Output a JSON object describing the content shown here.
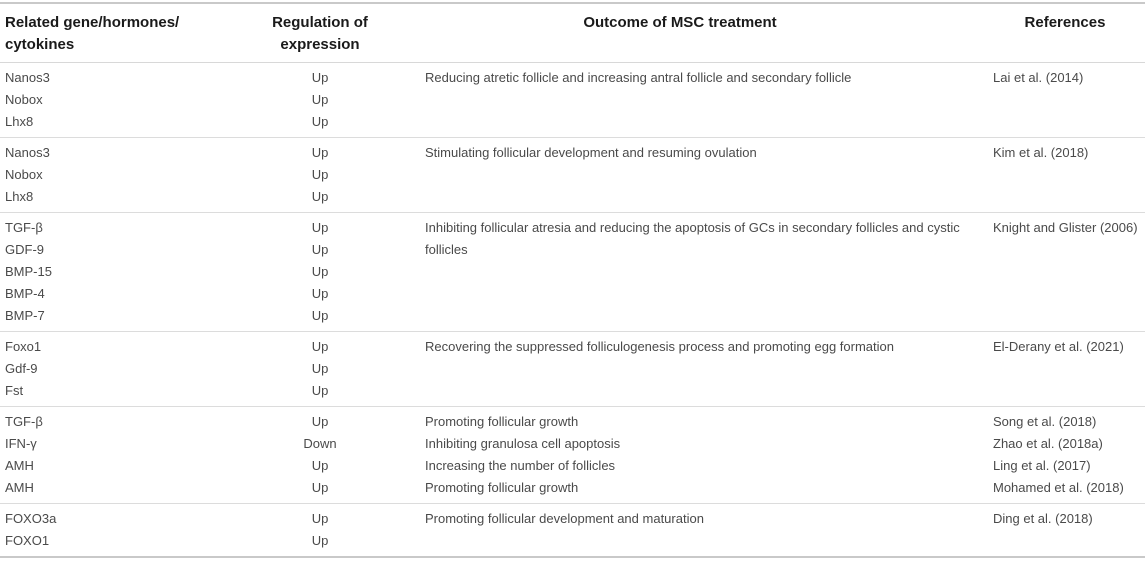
{
  "table": {
    "headers": [
      "Related gene/hormones/\ncytokines",
      "Regulation of\nexpression",
      "Outcome of MSC treatment",
      "References"
    ],
    "rows": [
      {
        "genes": [
          "Nanos3",
          "Nobox",
          "Lhx8"
        ],
        "regulation": [
          "Up",
          "Up",
          "Up"
        ],
        "outcomes": [
          "Reducing atretic follicle and increasing antral follicle and secondary follicle"
        ],
        "references": [
          "Lai et al. (2014)"
        ]
      },
      {
        "genes": [
          "Nanos3",
          "Nobox",
          "Lhx8"
        ],
        "regulation": [
          "Up",
          "Up",
          "Up"
        ],
        "outcomes": [
          "Stimulating follicular development and resuming ovulation"
        ],
        "references": [
          "Kim et al. (2018)"
        ]
      },
      {
        "genes": [
          "TGF-β",
          "GDF-9",
          "BMP-15",
          "BMP-4",
          "BMP-7"
        ],
        "regulation": [
          "Up",
          "Up",
          "Up",
          "Up",
          "Up"
        ],
        "outcomes": [
          "Inhibiting follicular atresia and reducing the apoptosis of GCs in secondary follicles and cystic follicles"
        ],
        "references": [
          "Knight and Glister (2006)"
        ]
      },
      {
        "genes": [
          "Foxo1",
          "Gdf-9",
          "Fst"
        ],
        "regulation": [
          "Up",
          "Up",
          "Up"
        ],
        "outcomes": [
          "Recovering the suppressed folliculogenesis process and promoting egg formation"
        ],
        "references": [
          "El-Derany et al. (2021)"
        ]
      },
      {
        "genes": [
          "TGF-β",
          "IFN-γ",
          "AMH",
          "AMH"
        ],
        "regulation": [
          "Up",
          "Down",
          "Up",
          "Up"
        ],
        "outcomes": [
          "Promoting follicular growth",
          "Inhibiting granulosa cell apoptosis",
          "Increasing the number of follicles",
          "Promoting follicular growth"
        ],
        "references": [
          "Song et al. (2018)",
          "Zhao et al. (2018a)",
          "Ling et al. (2017)",
          "Mohamed et al. (2018)"
        ]
      },
      {
        "genes": [
          "FOXO3a",
          "FOXO1"
        ],
        "regulation": [
          "Up",
          "Up"
        ],
        "outcomes": [
          "Promoting follicular development and maturation"
        ],
        "references": [
          "Ding et al. (2018)"
        ]
      }
    ]
  }
}
